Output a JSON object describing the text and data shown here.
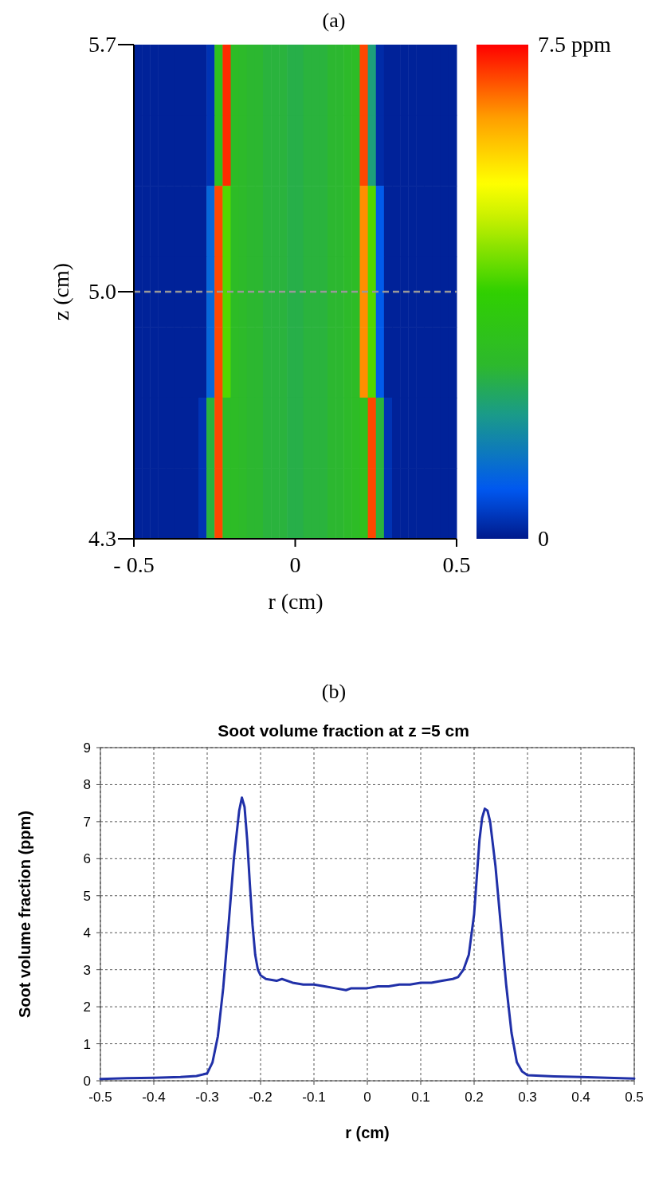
{
  "chart_data": [
    {
      "type": "heatmap",
      "title": "(a)",
      "xlabel": "r (cm)",
      "ylabel": "z (cm)",
      "x": [
        -0.4875,
        -0.4625,
        -0.4375,
        -0.4125,
        -0.3875,
        -0.3625,
        -0.3375,
        -0.3125,
        -0.2875,
        -0.2625,
        -0.2375,
        -0.2125,
        -0.1875,
        -0.1625,
        -0.1375,
        -0.1125,
        -0.0875,
        -0.0625,
        -0.0375,
        -0.0125,
        0.0125,
        0.0375,
        0.0625,
        0.0875,
        0.1125,
        0.1375,
        0.1625,
        0.1875,
        0.2125,
        0.2375,
        0.2625,
        0.2875,
        0.3125,
        0.3375,
        0.3625,
        0.3875,
        0.4125,
        0.4375,
        0.4625,
        0.4875
      ],
      "y": [
        5.6,
        5.4,
        5.2,
        5.0,
        4.8,
        4.6,
        4.4
      ],
      "cells": [
        [
          0.1,
          0.1,
          0.1,
          0.1,
          0.1,
          0.1,
          0.1,
          0.1,
          0.1,
          0.3,
          3,
          7.2,
          2.8,
          2.7,
          2.6,
          2.6,
          2.5,
          2.5,
          2.5,
          2.4,
          2.4,
          2.5,
          2.5,
          2.5,
          2.6,
          2.6,
          2.7,
          2.8,
          7,
          2,
          0.2,
          0.1,
          0.1,
          0.1,
          0.1,
          0.1,
          0.1,
          0.1,
          0.1,
          0.1
        ],
        [
          0.1,
          0.1,
          0.1,
          0.1,
          0.1,
          0.1,
          0.1,
          0.1,
          0.1,
          0.3,
          3,
          7.2,
          2.8,
          2.7,
          2.6,
          2.6,
          2.5,
          2.5,
          2.5,
          2.4,
          2.4,
          2.5,
          2.5,
          2.5,
          2.6,
          2.6,
          2.7,
          2.8,
          7,
          2,
          0.2,
          0.1,
          0.1,
          0.1,
          0.1,
          0.1,
          0.1,
          0.1,
          0.1,
          0.1
        ],
        [
          0.1,
          0.1,
          0.1,
          0.1,
          0.1,
          0.1,
          0.1,
          0.1,
          0.1,
          1,
          7,
          4,
          2.8,
          2.7,
          2.6,
          2.6,
          2.5,
          2.5,
          2.5,
          2.4,
          2.4,
          2.5,
          2.5,
          2.5,
          2.6,
          2.6,
          2.7,
          2.8,
          6.5,
          4,
          0.8,
          0.1,
          0.1,
          0.1,
          0.1,
          0.1,
          0.1,
          0.1,
          0.1,
          0.1
        ],
        [
          0.1,
          0.1,
          0.1,
          0.1,
          0.1,
          0.1,
          0.1,
          0.1,
          0.1,
          1,
          7,
          4,
          2.8,
          2.7,
          2.6,
          2.6,
          2.5,
          2.5,
          2.5,
          2.4,
          2.4,
          2.5,
          2.5,
          2.5,
          2.6,
          2.6,
          2.7,
          2.8,
          6.5,
          4,
          0.8,
          0.1,
          0.1,
          0.1,
          0.1,
          0.1,
          0.1,
          0.1,
          0.1,
          0.1
        ],
        [
          0.1,
          0.1,
          0.1,
          0.1,
          0.1,
          0.1,
          0.1,
          0.1,
          0.1,
          1,
          7,
          4,
          2.8,
          2.7,
          2.6,
          2.6,
          2.5,
          2.5,
          2.5,
          2.4,
          2.4,
          2.5,
          2.5,
          2.5,
          2.6,
          2.6,
          2.7,
          2.8,
          6.5,
          4,
          0.8,
          0.1,
          0.1,
          0.1,
          0.1,
          0.1,
          0.1,
          0.1,
          0.1,
          0.1
        ],
        [
          0.1,
          0.1,
          0.1,
          0.1,
          0.1,
          0.1,
          0.1,
          0.1,
          0.3,
          2.5,
          7,
          2.8,
          2.8,
          2.7,
          2.6,
          2.6,
          2.5,
          2.5,
          2.5,
          2.4,
          2.4,
          2.5,
          2.5,
          2.5,
          2.6,
          2.6,
          2.7,
          2.8,
          3,
          7,
          2.5,
          0.3,
          0.1,
          0.1,
          0.1,
          0.1,
          0.1,
          0.1,
          0.1,
          0.1
        ],
        [
          0.1,
          0.1,
          0.1,
          0.1,
          0.1,
          0.1,
          0.1,
          0.1,
          0.3,
          2.5,
          7,
          2.8,
          2.8,
          2.7,
          2.6,
          2.6,
          2.5,
          2.5,
          2.5,
          2.4,
          2.4,
          2.5,
          2.5,
          2.5,
          2.6,
          2.6,
          2.7,
          2.8,
          3,
          7,
          2.5,
          0.3,
          0.1,
          0.1,
          0.1,
          0.1,
          0.1,
          0.1,
          0.1,
          0.1
        ]
      ],
      "xlim": [
        -0.5,
        0.5
      ],
      "xticks": [
        {
          "value": -0.5,
          "label": "- 0.5"
        },
        0,
        0.5
      ],
      "ylim": [
        4.3,
        5.7
      ],
      "yticks": [
        4.3,
        {
          "value": 5.0,
          "label": "5.0"
        },
        5.7
      ],
      "clim": [
        0,
        7.5
      ],
      "cticks": [
        0,
        {
          "value": 7.5,
          "label": "7.5 ppm"
        }
      ],
      "ref_lines": [
        {
          "axis": "y",
          "value": 5.0,
          "color": "#999999",
          "line_style": "dashed"
        }
      ]
    },
    {
      "type": "line",
      "title": "(b)",
      "subtitle": "Soot volume fraction at z =5 cm",
      "xlabel": "r (cm)",
      "ylabel": "Soot volume fraction (ppm)",
      "xlim": [
        -0.5,
        0.5
      ],
      "xticks": [
        -0.5,
        -0.4,
        -0.3,
        -0.2,
        -0.1,
        0,
        0.1,
        0.2,
        0.3,
        0.4,
        0.5
      ],
      "ylim": [
        0,
        9
      ],
      "yticks": [
        0,
        1,
        2,
        3,
        4,
        5,
        6,
        7,
        8,
        9
      ],
      "grid": true,
      "marker": "none",
      "line_style": "solid",
      "series": [
        {
          "color": "#2030a8",
          "x": [
            -0.5,
            -0.45,
            -0.4,
            -0.35,
            -0.32,
            -0.3,
            -0.29,
            -0.28,
            -0.27,
            -0.26,
            -0.25,
            -0.24,
            -0.235,
            -0.23,
            -0.225,
            -0.22,
            -0.215,
            -0.21,
            -0.205,
            -0.2,
            -0.19,
            -0.17,
            -0.16,
            -0.14,
            -0.12,
            -0.1,
            -0.08,
            -0.06,
            -0.04,
            -0.03,
            -0.02,
            0,
            0.02,
            0.04,
            0.06,
            0.08,
            0.1,
            0.12,
            0.14,
            0.16,
            0.17,
            0.18,
            0.19,
            0.2,
            0.205,
            0.21,
            0.215,
            0.22,
            0.225,
            0.23,
            0.24,
            0.25,
            0.26,
            0.27,
            0.28,
            0.29,
            0.3,
            0.35,
            0.4,
            0.45,
            0.5
          ],
          "values": [
            0.05,
            0.07,
            0.08,
            0.1,
            0.13,
            0.2,
            0.5,
            1.2,
            2.5,
            4.2,
            6,
            7.3,
            7.65,
            7.4,
            6.5,
            5.3,
            4.2,
            3.4,
            3,
            2.85,
            2.75,
            2.7,
            2.75,
            2.65,
            2.6,
            2.6,
            2.55,
            2.5,
            2.45,
            2.5,
            2.5,
            2.5,
            2.55,
            2.55,
            2.6,
            2.6,
            2.65,
            2.65,
            2.7,
            2.75,
            2.8,
            3,
            3.4,
            4.5,
            5.5,
            6.5,
            7.1,
            7.35,
            7.3,
            7,
            5.8,
            4.2,
            2.6,
            1.3,
            0.5,
            0.25,
            0.15,
            0.12,
            0.1,
            0.08,
            0.06
          ]
        }
      ]
    }
  ]
}
